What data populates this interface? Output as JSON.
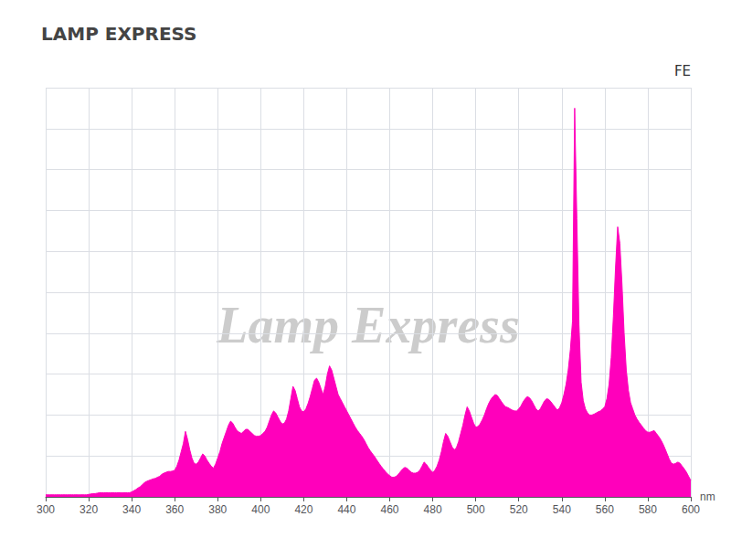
{
  "chart_data": {
    "type": "area",
    "title": "LAMP EXPRESS",
    "xlabel": "nm",
    "annotations": [
      "FE",
      "Lamp Express"
    ],
    "color": "#FF00BB",
    "xlim": [
      300,
      600
    ],
    "xticks": [
      300,
      320,
      340,
      360,
      380,
      400,
      420,
      440,
      460,
      480,
      500,
      520,
      540,
      560,
      580,
      600
    ],
    "ylim": [
      0,
      1.0
    ],
    "yticks": [
      0.0,
      0.1,
      0.2,
      0.3,
      0.4,
      0.5,
      0.6,
      0.7,
      0.8,
      0.9,
      1.0
    ],
    "tick_labels": "x",
    "grid": true,
    "x": [
      300,
      301,
      302,
      303,
      304,
      305,
      306,
      307,
      308,
      309,
      310,
      311,
      312,
      313,
      314,
      315,
      316,
      317,
      318,
      319,
      320,
      321,
      322,
      323,
      324,
      325,
      326,
      327,
      328,
      329,
      330,
      331,
      332,
      333,
      334,
      335,
      336,
      337,
      338,
      339,
      340,
      341,
      342,
      343,
      344,
      345,
      346,
      347,
      348,
      349,
      350,
      351,
      352,
      353,
      354,
      355,
      356,
      357,
      358,
      359,
      360,
      361,
      362,
      363,
      364,
      365,
      366,
      367,
      368,
      369,
      370,
      371,
      372,
      373,
      374,
      375,
      376,
      377,
      378,
      379,
      380,
      381,
      382,
      383,
      384,
      385,
      386,
      387,
      388,
      389,
      390,
      391,
      392,
      393,
      394,
      395,
      396,
      397,
      398,
      399,
      400,
      401,
      402,
      403,
      404,
      405,
      406,
      407,
      408,
      409,
      410,
      411,
      412,
      413,
      414,
      415,
      416,
      417,
      418,
      419,
      420,
      421,
      422,
      423,
      424,
      425,
      426,
      427,
      428,
      429,
      430,
      431,
      432,
      433,
      434,
      435,
      436,
      437,
      438,
      439,
      440,
      441,
      442,
      443,
      444,
      445,
      446,
      447,
      448,
      449,
      450,
      451,
      452,
      453,
      454,
      455,
      456,
      457,
      458,
      459,
      460,
      461,
      462,
      463,
      464,
      465,
      466,
      467,
      468,
      469,
      470,
      471,
      472,
      473,
      474,
      475,
      476,
      477,
      478,
      479,
      480,
      481,
      482,
      483,
      484,
      485,
      486,
      487,
      488,
      489,
      490,
      491,
      492,
      493,
      494,
      495,
      496,
      497,
      498,
      499,
      500,
      501,
      502,
      503,
      504,
      505,
      506,
      507,
      508,
      509,
      510,
      511,
      512,
      513,
      514,
      515,
      516,
      517,
      518,
      519,
      520,
      521,
      522,
      523,
      524,
      525,
      526,
      527,
      528,
      529,
      530,
      531,
      532,
      533,
      534,
      535,
      536,
      537,
      538,
      539,
      540,
      541,
      542,
      543,
      544,
      545,
      546,
      547,
      548,
      549,
      550,
      551,
      552,
      553,
      554,
      555,
      556,
      557,
      558,
      559,
      560,
      561,
      562,
      563,
      564,
      565,
      566,
      567,
      568,
      569,
      570,
      571,
      572,
      573,
      574,
      575,
      576,
      577,
      578,
      579,
      580,
      581,
      582,
      583,
      584,
      585,
      586,
      587,
      588,
      589,
      590,
      591,
      592,
      593,
      594,
      595,
      596,
      597,
      598,
      599,
      600
    ],
    "values": [
      0.005,
      0.005,
      0.005,
      0.005,
      0.005,
      0.005,
      0.005,
      0.005,
      0.005,
      0.005,
      0.005,
      0.005,
      0.005,
      0.005,
      0.005,
      0.005,
      0.005,
      0.005,
      0.005,
      0.005,
      0.006,
      0.007,
      0.008,
      0.008,
      0.009,
      0.01,
      0.01,
      0.01,
      0.01,
      0.01,
      0.01,
      0.01,
      0.01,
      0.01,
      0.01,
      0.01,
      0.01,
      0.01,
      0.01,
      0.01,
      0.012,
      0.015,
      0.018,
      0.022,
      0.025,
      0.03,
      0.035,
      0.038,
      0.04,
      0.042,
      0.044,
      0.045,
      0.048,
      0.05,
      0.055,
      0.058,
      0.06,
      0.062,
      0.062,
      0.063,
      0.065,
      0.075,
      0.09,
      0.11,
      0.13,
      0.16,
      0.14,
      0.115,
      0.095,
      0.082,
      0.08,
      0.085,
      0.095,
      0.105,
      0.1,
      0.09,
      0.082,
      0.075,
      0.07,
      0.08,
      0.095,
      0.11,
      0.13,
      0.145,
      0.16,
      0.175,
      0.185,
      0.18,
      0.17,
      0.162,
      0.158,
      0.155,
      0.16,
      0.165,
      0.165,
      0.16,
      0.155,
      0.15,
      0.148,
      0.148,
      0.15,
      0.155,
      0.16,
      0.17,
      0.185,
      0.2,
      0.21,
      0.205,
      0.195,
      0.185,
      0.178,
      0.18,
      0.19,
      0.21,
      0.24,
      0.27,
      0.26,
      0.24,
      0.22,
      0.21,
      0.208,
      0.215,
      0.228,
      0.245,
      0.265,
      0.285,
      0.29,
      0.28,
      0.265,
      0.25,
      0.27,
      0.3,
      0.32,
      0.31,
      0.29,
      0.27,
      0.25,
      0.24,
      0.23,
      0.22,
      0.21,
      0.2,
      0.19,
      0.18,
      0.17,
      0.162,
      0.155,
      0.148,
      0.14,
      0.13,
      0.12,
      0.112,
      0.105,
      0.098,
      0.09,
      0.082,
      0.075,
      0.068,
      0.062,
      0.056,
      0.052,
      0.048,
      0.048,
      0.05,
      0.055,
      0.062,
      0.068,
      0.072,
      0.07,
      0.065,
      0.06,
      0.058,
      0.058,
      0.06,
      0.065,
      0.075,
      0.085,
      0.08,
      0.072,
      0.065,
      0.06,
      0.065,
      0.075,
      0.09,
      0.11,
      0.135,
      0.155,
      0.148,
      0.135,
      0.122,
      0.115,
      0.12,
      0.135,
      0.155,
      0.175,
      0.2,
      0.22,
      0.21,
      0.195,
      0.18,
      0.17,
      0.172,
      0.178,
      0.188,
      0.2,
      0.215,
      0.228,
      0.238,
      0.245,
      0.25,
      0.248,
      0.24,
      0.232,
      0.225,
      0.22,
      0.218,
      0.215,
      0.212,
      0.21,
      0.21,
      0.215,
      0.222,
      0.232,
      0.24,
      0.245,
      0.242,
      0.235,
      0.225,
      0.215,
      0.21,
      0.215,
      0.225,
      0.235,
      0.24,
      0.238,
      0.232,
      0.225,
      0.218,
      0.212,
      0.218,
      0.23,
      0.25,
      0.275,
      0.31,
      0.36,
      0.43,
      0.95,
      0.68,
      0.42,
      0.28,
      0.235,
      0.215,
      0.205,
      0.2,
      0.2,
      0.202,
      0.205,
      0.208,
      0.21,
      0.215,
      0.22,
      0.24,
      0.275,
      0.34,
      0.44,
      0.56,
      0.66,
      0.62,
      0.52,
      0.4,
      0.31,
      0.26,
      0.23,
      0.215,
      0.2,
      0.19,
      0.182,
      0.175,
      0.168,
      0.162,
      0.158,
      0.158,
      0.16,
      0.162,
      0.155,
      0.148,
      0.14,
      0.13,
      0.118,
      0.105,
      0.092,
      0.082,
      0.08,
      0.082,
      0.085,
      0.082,
      0.075,
      0.068,
      0.06,
      0.05,
      0.04
    ]
  }
}
